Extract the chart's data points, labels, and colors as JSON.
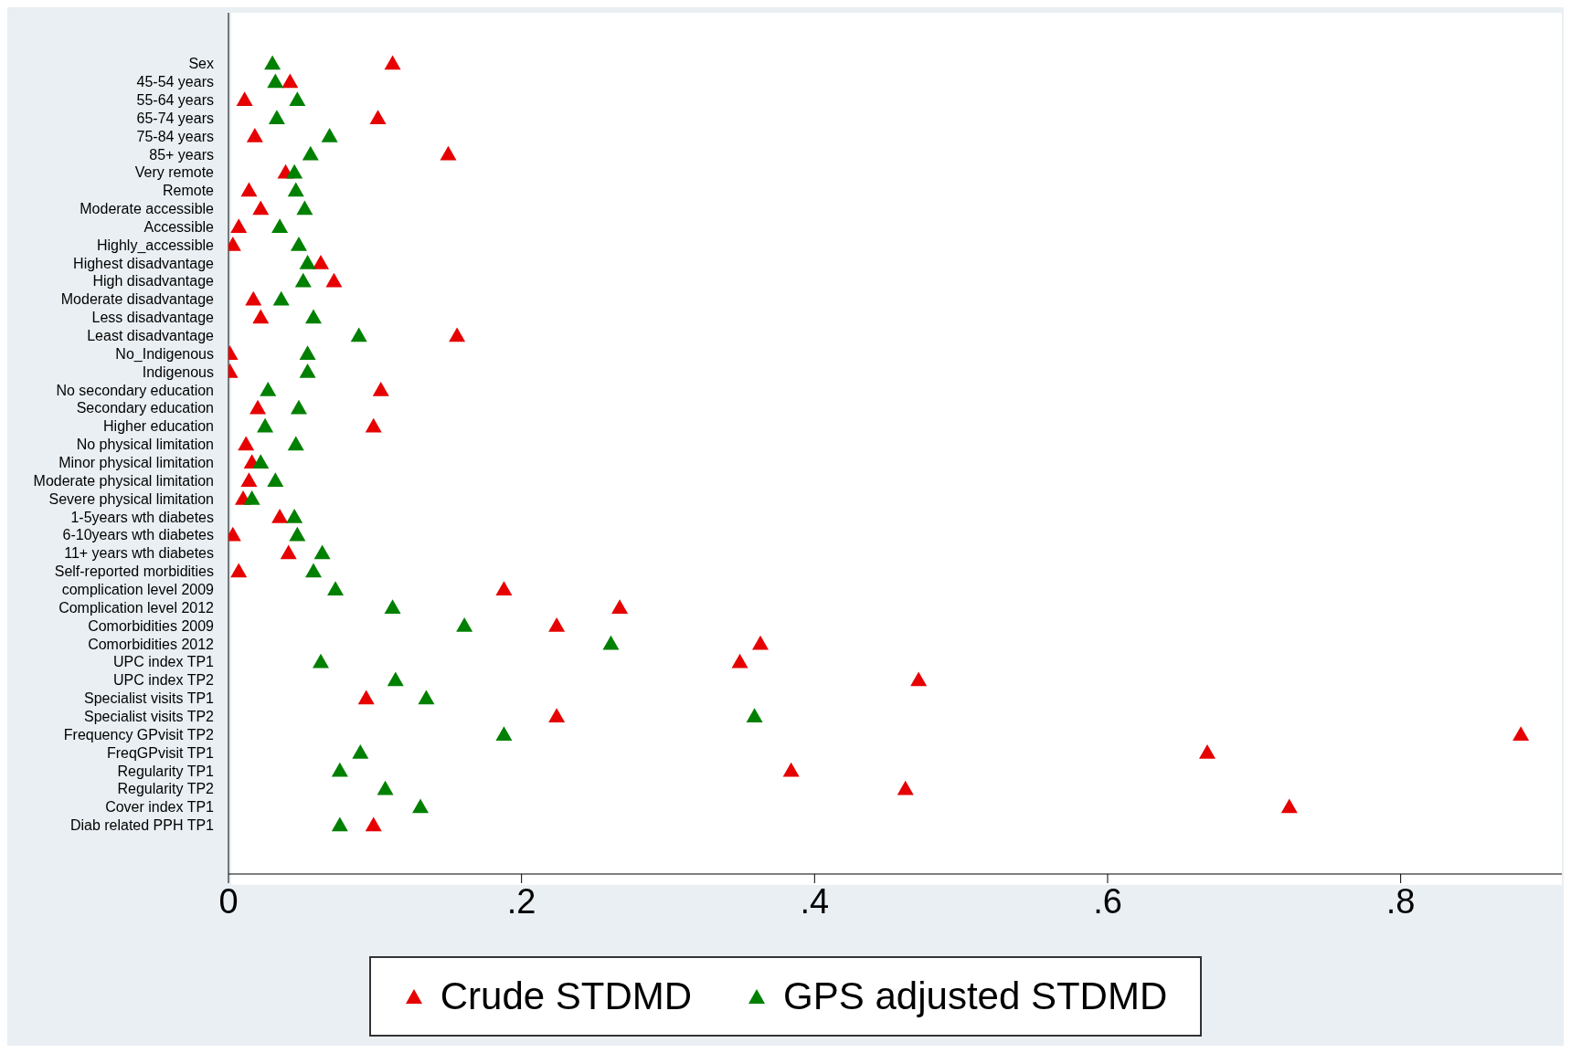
{
  "chart_data": {
    "type": "scatter",
    "orientation": "horizontal",
    "marker": "triangle",
    "legend": "bottom",
    "categories": [
      "Sex",
      "45-54 years",
      "55-64 years",
      "65-74 years",
      "75-84 years",
      "85+ years",
      "Very remote",
      "Remote",
      "Moderate accessible",
      "Accessible",
      "Highly_accessible",
      "Highest disadvantage",
      "High disadvantage",
      "Moderate disadvantage",
      "Less disadvantage",
      "Least disadvantage",
      "No_Indigenous",
      "Indigenous",
      "No secondary education",
      "Secondary education",
      "Higher education",
      "No physical limitation",
      "Minor physical limitation",
      "Moderate physical limitation",
      "Severe physical limitation",
      "1-5years wth diabetes",
      "6-10years wth diabetes",
      "11+ years wth diabetes",
      "Self-reported morbidities",
      "complication level 2009",
      "Complication level 2012",
      "Comorbidities 2009",
      "Comorbidities 2012",
      "UPC index TP1",
      "UPC index TP2",
      "Specialist visits TP1",
      "Specialist visits TP2",
      "Frequency GPvisit TP2",
      "FreqGPvisit TP1",
      "Regularity TP1",
      "Regularity TP2",
      "Cover index TP1",
      "Diab related PPH TP1"
    ],
    "series": [
      {
        "name": "Crude STDMD",
        "color": "#e60000",
        "values": [
          0.112,
          0.042,
          0.011,
          0.102,
          0.018,
          0.15,
          0.039,
          0.014,
          0.022,
          0.007,
          0.003,
          0.063,
          0.072,
          0.017,
          0.022,
          0.156,
          0.001,
          0.001,
          0.104,
          0.02,
          0.099,
          0.012,
          0.016,
          0.014,
          0.01,
          0.035,
          0.003,
          0.041,
          0.007,
          0.188,
          0.267,
          0.224,
          0.363,
          0.349,
          0.471,
          0.094,
          0.224,
          0.882,
          0.668,
          0.384,
          0.462,
          0.724,
          0.099
        ]
      },
      {
        "name": "GPS adjusted STDMD",
        "color": "#008000",
        "values": [
          0.03,
          0.032,
          0.047,
          0.033,
          0.069,
          0.056,
          0.045,
          0.046,
          0.052,
          0.035,
          0.048,
          0.054,
          0.051,
          0.036,
          0.058,
          0.089,
          0.054,
          0.054,
          0.027,
          0.048,
          0.025,
          0.046,
          0.022,
          0.032,
          0.016,
          0.045,
          0.047,
          0.064,
          0.058,
          0.073,
          0.112,
          0.161,
          0.261,
          0.063,
          0.114,
          0.135,
          0.359,
          0.188,
          0.09,
          0.076,
          0.107,
          0.131,
          0.076
        ]
      }
    ],
    "xlim": [
      0,
      0.91
    ],
    "xticks": [
      0,
      {
        "value": 0.2,
        "label": ".2"
      },
      {
        "value": 0.4,
        "label": ".4"
      },
      {
        "value": 0.6,
        "label": ".6"
      },
      {
        "value": 0.8,
        "label": ".8"
      }
    ]
  }
}
